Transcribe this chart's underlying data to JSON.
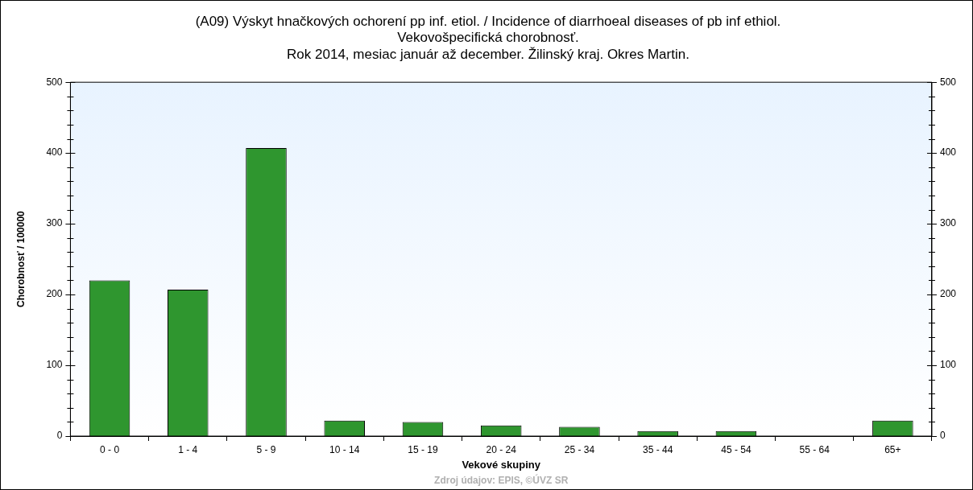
{
  "chart_data": {
    "type": "bar",
    "title": "(A09) Výskyt hnačkových ochorení pp inf. etiol. / Incidence of diarrhoeal diseases of pb inf ethiol.",
    "subtitle": "Vekovošpecifická chorobnosť.\nRok 2014, mesiac január až december. Žilinský kraj. Okres Martin.",
    "xlabel": "Vekové skupiny",
    "ylabel": "Chorobnosť / 100000",
    "categories": [
      "0 - 0",
      "1 - 4",
      "5 - 9",
      "10 - 14",
      "15 - 19",
      "20 - 24",
      "25 - 34",
      "35 - 44",
      "45 - 54",
      "55 - 64",
      "65+"
    ],
    "values": [
      220,
      207,
      407,
      22,
      20,
      15,
      13,
      7,
      7,
      0,
      22
    ],
    "color": "#2f962f",
    "ylim": [
      0,
      500
    ],
    "yticks": [
      0,
      {
        "value": 20,
        "label": null
      },
      {
        "value": 40,
        "label": null
      },
      {
        "value": 60,
        "label": null
      },
      {
        "value": 80,
        "label": null
      },
      100,
      {
        "value": 120,
        "label": null
      },
      {
        "value": 140,
        "label": null
      },
      {
        "value": 160,
        "label": null
      },
      {
        "value": 180,
        "label": null
      },
      200,
      {
        "value": 220,
        "label": null
      },
      {
        "value": 240,
        "label": null
      },
      {
        "value": 260,
        "label": null
      },
      {
        "value": 280,
        "label": null
      },
      300,
      {
        "value": 320,
        "label": null
      },
      {
        "value": 340,
        "label": null
      },
      {
        "value": 360,
        "label": null
      },
      {
        "value": 380,
        "label": null
      },
      400,
      {
        "value": 420,
        "label": null
      },
      {
        "value": 440,
        "label": null
      },
      {
        "value": 460,
        "label": null
      },
      {
        "value": 480,
        "label": null
      },
      500
    ],
    "y2lim": [
      0,
      500
    ],
    "y2ticks": [
      0,
      {
        "value": 20,
        "label": null
      },
      {
        "value": 40,
        "label": null
      },
      {
        "value": 60,
        "label": null
      },
      {
        "value": 80,
        "label": null
      },
      100,
      {
        "value": 120,
        "label": null
      },
      {
        "value": 140,
        "label": null
      },
      {
        "value": 160,
        "label": null
      },
      {
        "value": 180,
        "label": null
      },
      200,
      {
        "value": 220,
        "label": null
      },
      {
        "value": 240,
        "label": null
      },
      {
        "value": 260,
        "label": null
      },
      {
        "value": 280,
        "label": null
      },
      300,
      {
        "value": 320,
        "label": null
      },
      {
        "value": 340,
        "label": null
      },
      {
        "value": 360,
        "label": null
      },
      {
        "value": 380,
        "label": null
      },
      400,
      {
        "value": 420,
        "label": null
      },
      {
        "value": 440,
        "label": null
      },
      {
        "value": 460,
        "label": null
      },
      {
        "value": 480,
        "label": null
      },
      500
    ],
    "grid": false,
    "legend": false,
    "annotations": [
      "Zdroj údajov: EPIS, ©ÚVZ SR"
    ]
  }
}
